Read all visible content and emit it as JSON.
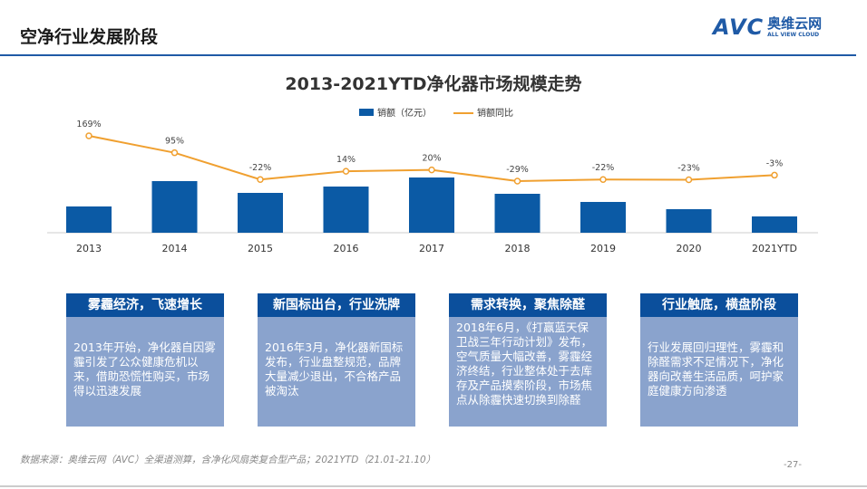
{
  "header": {
    "title": "空净行业发展阶段",
    "logo_text": "AVC 奥维云网",
    "logo_sub": "ALL VIEW CLOUD"
  },
  "chart_data": {
    "type": "bar+line",
    "title": "2013-2021YTD净化器市场规模走势",
    "categories": [
      "2013",
      "2014",
      "2015",
      "2016",
      "2017",
      "2018",
      "2019",
      "2020",
      "2021YTD"
    ],
    "series": [
      {
        "name": "销额（亿元）",
        "type": "bar",
        "values": [
          29,
          57,
          44,
          51,
          61,
          43,
          34,
          26,
          18
        ],
        "color": "#0b5aa5"
      },
      {
        "name": "销额同比",
        "type": "line",
        "values": [
          169,
          95,
          -22,
          14,
          20,
          -29,
          -22,
          -23,
          -3
        ],
        "labels": [
          "169%",
          "95%",
          "-22%",
          "14%",
          "20%",
          "-29%",
          "-22%",
          "-23%",
          "-3%"
        ],
        "color": "#f0a030"
      }
    ],
    "legend": "top"
  },
  "boxes": [
    {
      "title": "雾霾经济，飞速增长",
      "text": "2013年开始，净化器自因雾霾引发了公众健康危机以来，借助恐慌性购买，市场得以迅速发展"
    },
    {
      "title": "新国标出台，行业洗牌",
      "text": "2016年3月，净化器新国标发布，行业盘整规范，品牌大量减少退出，不合格产品被淘汰"
    },
    {
      "title": "需求转换，聚焦除醛",
      "text": "2018年6月，《打赢蓝天保卫战三年行动计划》发布，空气质量大幅改善，雾霾经济终结，行业整体处于去库存及产品摸索阶段，市场焦点从除霾快速切换到除醛"
    },
    {
      "title": "行业触底，横盘阶段",
      "text": "行业发展回归理性，雾霾和除醛需求不足情况下，净化器向改善生活品质，呵护家庭健康方向渗透"
    }
  ],
  "footer": {
    "source": "数据来源：奥维云网（AVC）全渠道测算，含净化风扇类复合型产品；2021YTD（21.01-21.10）",
    "page": "-27-"
  }
}
